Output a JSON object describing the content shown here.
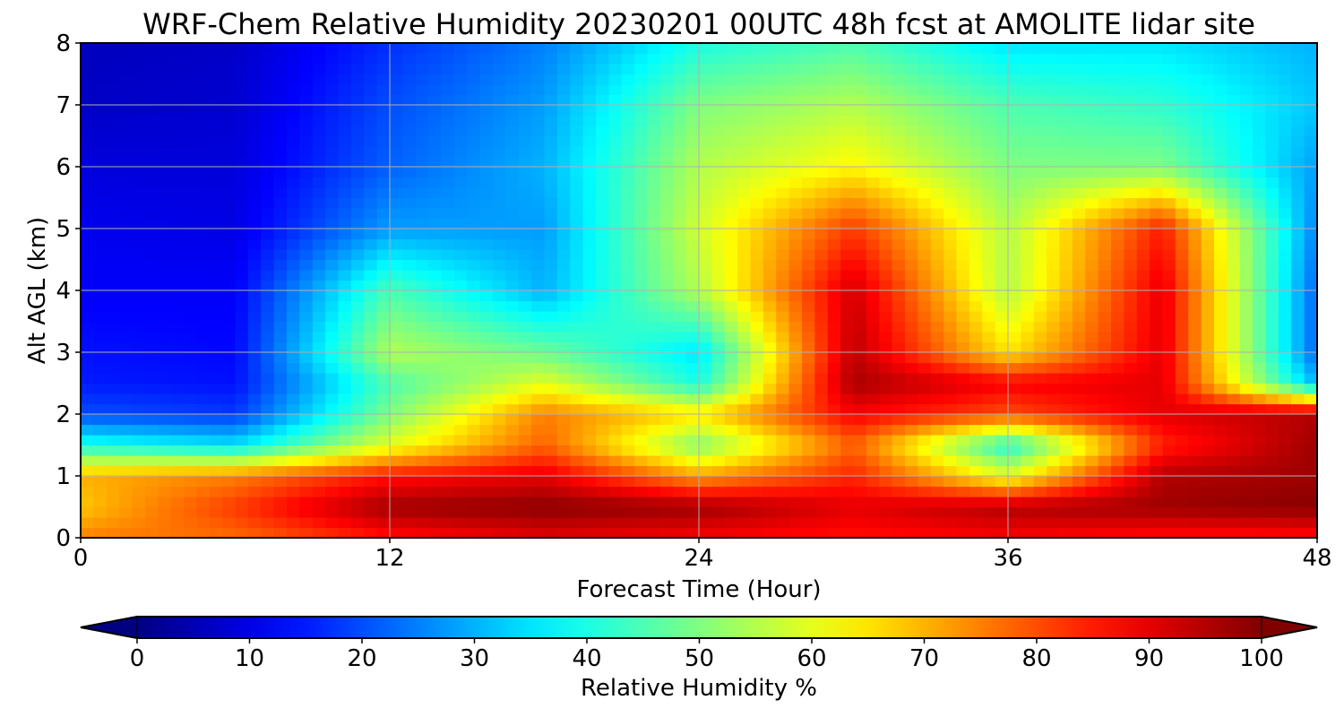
{
  "chart_data": {
    "type": "heatmap",
    "title": "WRF-Chem Relative Humidity 20230201 00UTC 48h fcst at AMOLITE lidar site",
    "xlabel": "Forecast Time (Hour)",
    "ylabel": "Alt AGL (km)",
    "xlim": [
      0,
      48
    ],
    "ylim": [
      0,
      8
    ],
    "x_ticks": [
      "0",
      "12",
      "24",
      "36",
      "48"
    ],
    "y_ticks": [
      "0",
      "1",
      "2",
      "3",
      "4",
      "5",
      "6",
      "7",
      "8"
    ],
    "grid": true,
    "colormap": "jet",
    "colorbar": {
      "label": "Relative Humidity %",
      "range": [
        0,
        100
      ],
      "ticks": [
        "0",
        "10",
        "20",
        "30",
        "40",
        "50",
        "60",
        "70",
        "80",
        "90",
        "100"
      ],
      "extend": "both",
      "orientation": "horizontal"
    },
    "x": [
      0,
      6,
      12,
      18,
      24,
      30,
      36,
      42,
      48
    ],
    "y": [
      0,
      0.5,
      1,
      1.5,
      2,
      2.5,
      3,
      4,
      5,
      6,
      7,
      8
    ],
    "z": [
      [
        75,
        77,
        86,
        90,
        88,
        86,
        88,
        86,
        86
      ],
      [
        68,
        82,
        97,
        99,
        97,
        90,
        95,
        97,
        99
      ],
      [
        70,
        75,
        86,
        90,
        72,
        84,
        60,
        95,
        97
      ],
      [
        40,
        35,
        60,
        78,
        50,
        78,
        40,
        84,
        97
      ],
      [
        20,
        18,
        50,
        75,
        65,
        88,
        80,
        90,
        95
      ],
      [
        15,
        14,
        45,
        60,
        40,
        96,
        88,
        90,
        30
      ],
      [
        14,
        13,
        55,
        48,
        35,
        94,
        65,
        90,
        22
      ],
      [
        12,
        12,
        45,
        30,
        55,
        92,
        55,
        90,
        22
      ],
      [
        11,
        10,
        28,
        28,
        58,
        82,
        55,
        85,
        25
      ],
      [
        9,
        9,
        22,
        30,
        55,
        63,
        50,
        50,
        28
      ],
      [
        7,
        8,
        20,
        28,
        50,
        55,
        45,
        42,
        32
      ],
      [
        6,
        7,
        17,
        25,
        40,
        45,
        35,
        35,
        30
      ]
    ]
  }
}
